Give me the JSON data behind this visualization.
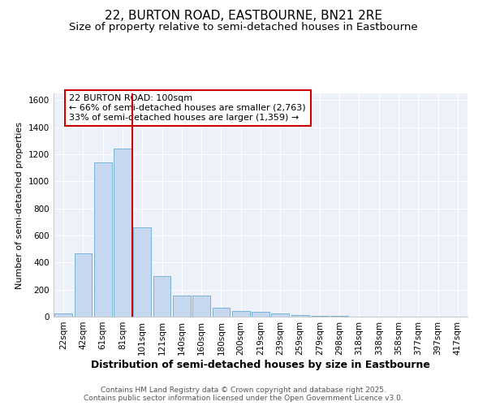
{
  "title1": "22, BURTON ROAD, EASTBOURNE, BN21 2RE",
  "title2": "Size of property relative to semi-detached houses in Eastbourne",
  "xlabel": "Distribution of semi-detached houses by size in Eastbourne",
  "ylabel": "Number of semi-detached properties",
  "categories": [
    "22sqm",
    "42sqm",
    "61sqm",
    "81sqm",
    "101sqm",
    "121sqm",
    "140sqm",
    "160sqm",
    "180sqm",
    "200sqm",
    "219sqm",
    "239sqm",
    "259sqm",
    "279sqm",
    "298sqm",
    "318sqm",
    "338sqm",
    "358sqm",
    "377sqm",
    "397sqm",
    "417sqm"
  ],
  "values": [
    25,
    470,
    1140,
    1240,
    660,
    300,
    155,
    155,
    68,
    42,
    35,
    25,
    12,
    4,
    4,
    2,
    1,
    1,
    0,
    0,
    0
  ],
  "bar_color": "#c5d8f0",
  "bar_edge_color": "#6aaad4",
  "vline_index": 4,
  "vline_color": "#cc0000",
  "annotation_box_text": "22 BURTON ROAD: 100sqm\n← 66% of semi-detached houses are smaller (2,763)\n33% of semi-detached houses are larger (1,359) →",
  "annotation_box_color": "#cc0000",
  "ylim": [
    0,
    1650
  ],
  "yticks": [
    0,
    200,
    400,
    600,
    800,
    1000,
    1200,
    1400,
    1600
  ],
  "background_color": "#edf1f9",
  "footer_text": "Contains HM Land Registry data © Crown copyright and database right 2025.\nContains public sector information licensed under the Open Government Licence v3.0.",
  "title1_fontsize": 11,
  "title2_fontsize": 9.5,
  "xlabel_fontsize": 9,
  "ylabel_fontsize": 8,
  "tick_fontsize": 7.5,
  "annotation_fontsize": 8,
  "footer_fontsize": 6.5
}
